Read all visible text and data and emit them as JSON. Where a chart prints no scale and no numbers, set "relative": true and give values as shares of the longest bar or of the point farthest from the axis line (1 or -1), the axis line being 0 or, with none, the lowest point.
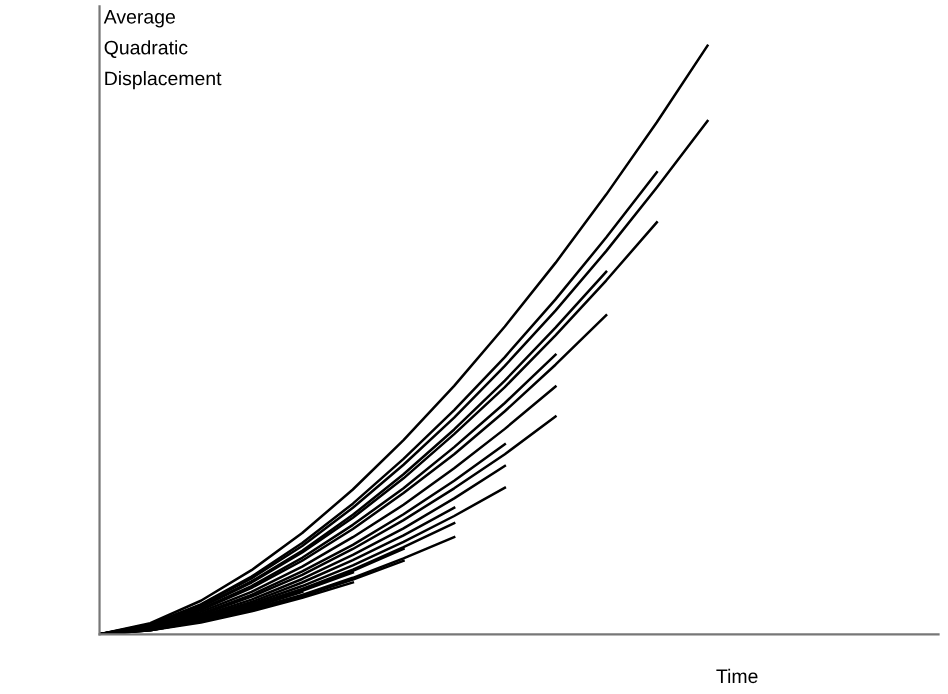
{
  "chart_data": {
    "type": "line",
    "relative": true,
    "xlabel": "Time",
    "ylabel": "Average\nQuadratic\nDisplacement",
    "marker": "none",
    "line_style": "solid",
    "categories": [
      null,
      null,
      null,
      null,
      null,
      null,
      null,
      null,
      null,
      null,
      null,
      null,
      null
    ],
    "series": [
      {
        "color": "#000000",
        "values": [
          0,
          0.019,
          0.057,
          0.109,
          0.172,
          0.246,
          0.33,
          0.422,
          0.523,
          0.631,
          0.747,
          0.87,
          1
        ]
      },
      {
        "color": "#000000",
        "values": [
          0,
          0.016,
          0.05,
          0.095,
          0.15,
          0.215,
          0.288,
          0.368,
          0.456,
          0.55,
          0.651,
          0.759,
          0.872
        ]
      },
      {
        "color": "#000000",
        "values": [
          0,
          0.017,
          0.051,
          0.098,
          0.155,
          0.222,
          0.298,
          0.381,
          0.471,
          0.569,
          0.674,
          0.785,
          null
        ]
      },
      {
        "color": "#000000",
        "values": [
          0,
          0.015,
          0.046,
          0.088,
          0.139,
          0.198,
          0.265,
          0.34,
          0.42,
          0.508,
          0.601,
          0.7,
          null
        ]
      },
      {
        "color": "#000000",
        "values": [
          0,
          0.015,
          0.047,
          0.09,
          0.142,
          0.203,
          0.272,
          0.348,
          0.431,
          0.521,
          0.616,
          null,
          null
        ]
      },
      {
        "color": "#000000",
        "values": [
          0,
          0.014,
          0.041,
          0.079,
          0.125,
          0.179,
          0.24,
          0.306,
          0.379,
          0.458,
          0.542,
          null,
          null
        ]
      },
      {
        "color": "#000000",
        "values": [
          0,
          0.014,
          0.043,
          0.082,
          0.13,
          0.186,
          0.248,
          0.318,
          0.393,
          0.475,
          null,
          null,
          null
        ]
      },
      {
        "color": "#000000",
        "values": [
          0,
          0.013,
          0.038,
          0.072,
          0.115,
          0.165,
          0.22,
          0.282,
          0.349,
          0.421,
          null,
          null,
          null
        ]
      },
      {
        "color": "#000000",
        "values": [
          0,
          0.011,
          0.033,
          0.064,
          0.101,
          0.145,
          0.194,
          0.248,
          0.306,
          0.37,
          null,
          null,
          null
        ]
      },
      {
        "color": "#000000",
        "values": [
          0,
          0.012,
          0.035,
          0.067,
          0.107,
          0.152,
          0.204,
          0.261,
          0.323,
          null,
          null,
          null,
          null
        ]
      },
      {
        "color": "#000000",
        "values": [
          0,
          0.01,
          0.031,
          0.059,
          0.094,
          0.135,
          0.18,
          0.231,
          0.286,
          null,
          null,
          null,
          null
        ]
      },
      {
        "color": "#000000",
        "values": [
          0,
          0.009,
          0.027,
          0.052,
          0.082,
          0.117,
          0.157,
          0.201,
          0.249,
          null,
          null,
          null,
          null
        ]
      },
      {
        "color": "#000000",
        "values": [
          0,
          0.01,
          0.029,
          0.055,
          0.088,
          0.126,
          0.168,
          0.215,
          null,
          null,
          null,
          null,
          null
        ]
      },
      {
        "color": "#000000",
        "values": [
          0,
          0.008,
          0.026,
          0.049,
          0.077,
          0.11,
          0.148,
          0.189,
          null,
          null,
          null,
          null,
          null
        ]
      },
      {
        "color": "#000000",
        "values": [
          0,
          0.007,
          0.022,
          0.043,
          0.067,
          0.096,
          0.129,
          0.165,
          null,
          null,
          null,
          null,
          null
        ]
      },
      {
        "color": "#000000",
        "values": [
          0,
          0.008,
          0.025,
          0.048,
          0.076,
          0.108,
          0.145,
          null,
          null,
          null,
          null,
          null,
          null
        ]
      },
      {
        "color": "#000000",
        "values": [
          0,
          0.007,
          0.022,
          0.041,
          0.065,
          0.093,
          0.125,
          null,
          null,
          null,
          null,
          null,
          null
        ]
      },
      {
        "color": "#000000",
        "values": [
          0,
          0.008,
          0.024,
          0.046,
          0.074,
          0.105,
          null,
          null,
          null,
          null,
          null,
          null,
          null
        ]
      },
      {
        "color": "#000000",
        "values": [
          0,
          0.007,
          0.02,
          0.039,
          0.062,
          0.088,
          null,
          null,
          null,
          null,
          null,
          null,
          null
        ]
      },
      {
        "color": "#000000",
        "values": [
          0,
          0.008,
          0.024,
          0.045,
          0.072,
          null,
          null,
          null,
          null,
          null,
          null,
          null,
          null
        ]
      }
    ]
  }
}
